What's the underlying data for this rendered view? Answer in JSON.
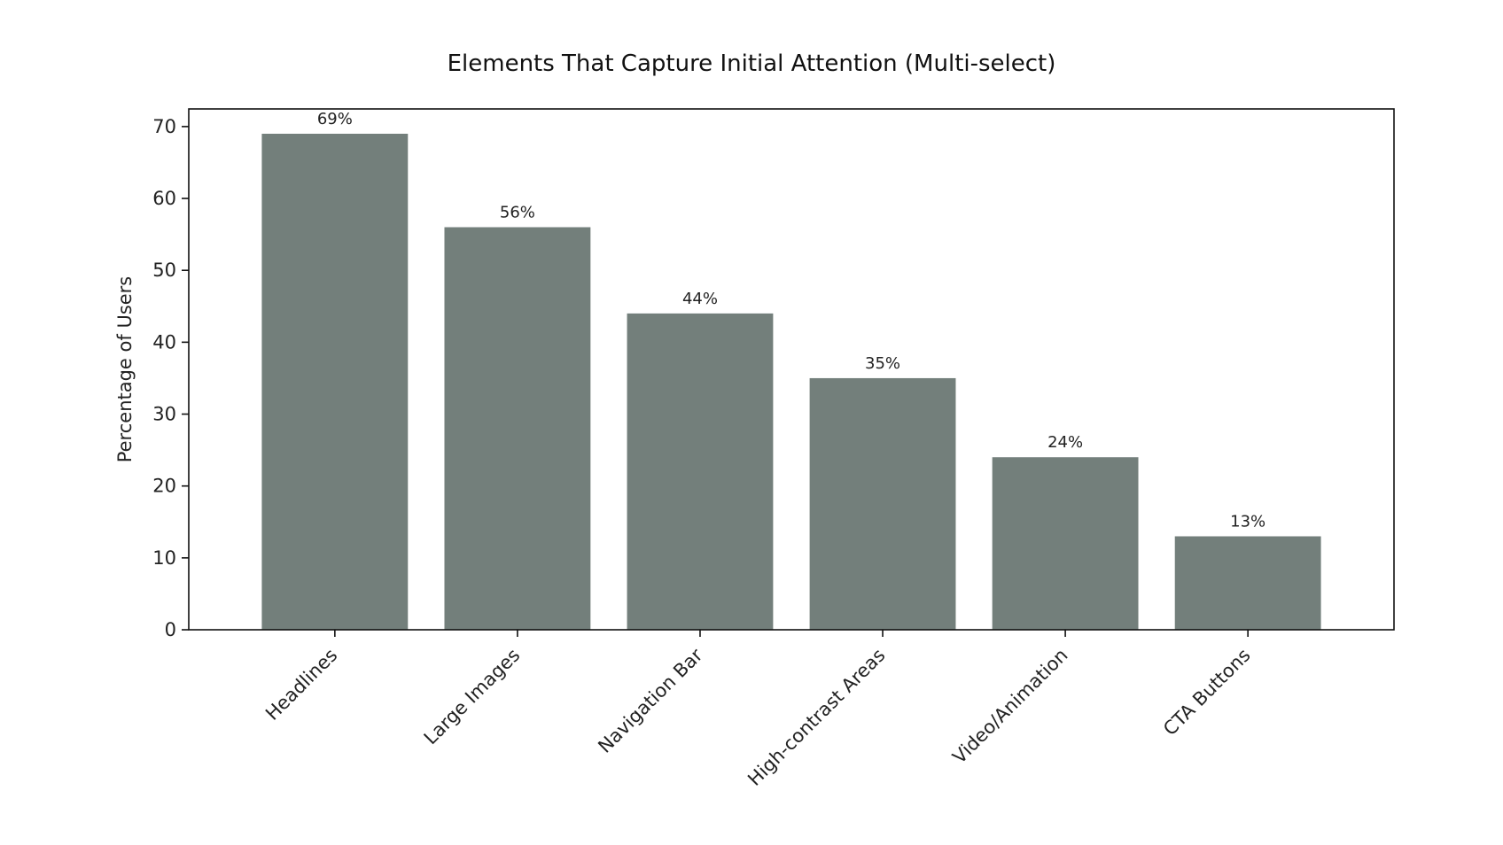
{
  "chart_data": {
    "type": "bar",
    "title": "Elements That Capture Initial Attention (Multi-select)",
    "xlabel": "",
    "ylabel": "Percentage of Users",
    "categories": [
      "Headlines",
      "Large Images",
      "Navigation Bar",
      "High-contrast Areas",
      "Video/Animation",
      "CTA Buttons"
    ],
    "values": [
      69,
      56,
      44,
      35,
      24,
      13
    ],
    "data_labels": [
      "69%",
      "56%",
      "44%",
      "35%",
      "24%",
      "13%"
    ],
    "ylim": [
      0,
      72.45
    ],
    "yticks": [
      0,
      10,
      20,
      30,
      40,
      50,
      60,
      70
    ],
    "grid": false,
    "legend": "none",
    "colors": {
      "bar": "#737f7b",
      "axis": "#111111",
      "text": "#222222",
      "background": "#ffffff"
    }
  }
}
